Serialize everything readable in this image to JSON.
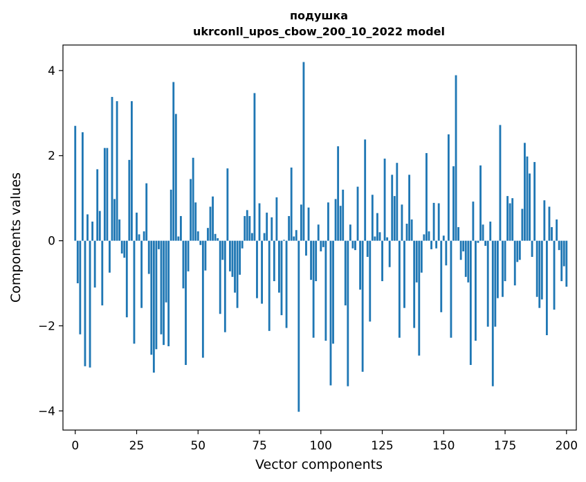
{
  "chart_data": {
    "type": "bar",
    "title_line1": "подушка",
    "title_line2": "ukrconll_upos_cbow_200_10_2022 model",
    "xlabel": "Vector components",
    "ylabel": "Components values",
    "xlim": [
      -5,
      204
    ],
    "ylim": [
      -4.45,
      4.6
    ],
    "xticks": [
      0,
      25,
      50,
      75,
      100,
      125,
      150,
      175,
      200
    ],
    "xtick_labels": [
      "0",
      "25",
      "50",
      "75",
      "100",
      "125",
      "150",
      "175",
      "200"
    ],
    "yticks": [
      -4,
      -2,
      0,
      2,
      4
    ],
    "ytick_labels": [
      "−4",
      "−2",
      "0",
      "2",
      "4"
    ],
    "bar_color": "#1f77b4",
    "grid": false,
    "values": [
      2.7,
      -1.0,
      -2.2,
      2.55,
      -2.95,
      0.62,
      -2.98,
      0.45,
      -1.1,
      1.68,
      0.7,
      -1.52,
      2.18,
      2.18,
      -0.75,
      3.38,
      0.98,
      3.28,
      0.5,
      -0.3,
      -0.4,
      -1.8,
      1.9,
      3.28,
      -2.42,
      0.66,
      0.15,
      -1.58,
      0.22,
      1.35,
      -0.78,
      -2.68,
      -3.1,
      -2.55,
      -0.2,
      -2.2,
      -2.45,
      -1.45,
      -2.48,
      1.2,
      3.73,
      2.98,
      0.1,
      0.58,
      -1.12,
      -2.92,
      -0.72,
      1.45,
      1.95,
      0.9,
      0.22,
      -0.1,
      -2.75,
      -0.7,
      0.3,
      0.8,
      1.04,
      0.16,
      0.06,
      -1.72,
      -0.45,
      -2.15,
      1.7,
      -0.72,
      -0.85,
      -1.22,
      -1.58,
      -0.8,
      -0.18,
      0.58,
      0.72,
      0.58,
      0.18,
      3.47,
      -1.35,
      0.88,
      -1.48,
      0.18,
      0.66,
      -2.12,
      0.55,
      -0.95,
      1.02,
      -1.22,
      -1.75,
      0.02,
      -2.05,
      0.58,
      1.72,
      0.1,
      0.25,
      -4.02,
      0.85,
      4.2,
      -0.35,
      0.78,
      -0.92,
      -2.28,
      -0.95,
      0.38,
      -0.25,
      -0.15,
      -2.35,
      0.9,
      -3.4,
      -2.42,
      0.98,
      2.22,
      0.82,
      1.2,
      -1.52,
      -3.42,
      0.38,
      -0.18,
      -0.22,
      1.27,
      -1.15,
      -3.08,
      2.38,
      -0.38,
      -1.9,
      1.08,
      0.1,
      0.65,
      0.2,
      -0.95,
      1.93,
      0.08,
      -0.62,
      1.55,
      1.05,
      1.83,
      -2.28,
      0.85,
      -1.58,
      0.4,
      1.55,
      0.5,
      -2.05,
      -0.98,
      -2.7,
      -0.75,
      0.15,
      2.06,
      0.22,
      -0.2,
      0.89,
      -0.18,
      0.88,
      -1.68,
      0.12,
      -0.58,
      2.5,
      -2.28,
      1.75,
      3.89,
      0.32,
      -0.45,
      -0.25,
      -0.85,
      -0.98,
      -2.92,
      0.92,
      -2.35,
      -0.05,
      1.77,
      0.38,
      -0.12,
      -2.02,
      0.45,
      -3.42,
      -2.02,
      -1.35,
      2.72,
      -1.32,
      -0.95,
      1.05,
      0.88,
      1.0,
      -1.05,
      -0.5,
      -0.45,
      0.75,
      2.3,
      1.98,
      1.58,
      -0.38,
      1.85,
      -1.32,
      -1.58,
      -1.38,
      0.95,
      -2.22,
      0.8,
      0.32,
      -1.62,
      0.5,
      -0.22,
      -0.95,
      -0.6,
      -1.08
    ]
  }
}
